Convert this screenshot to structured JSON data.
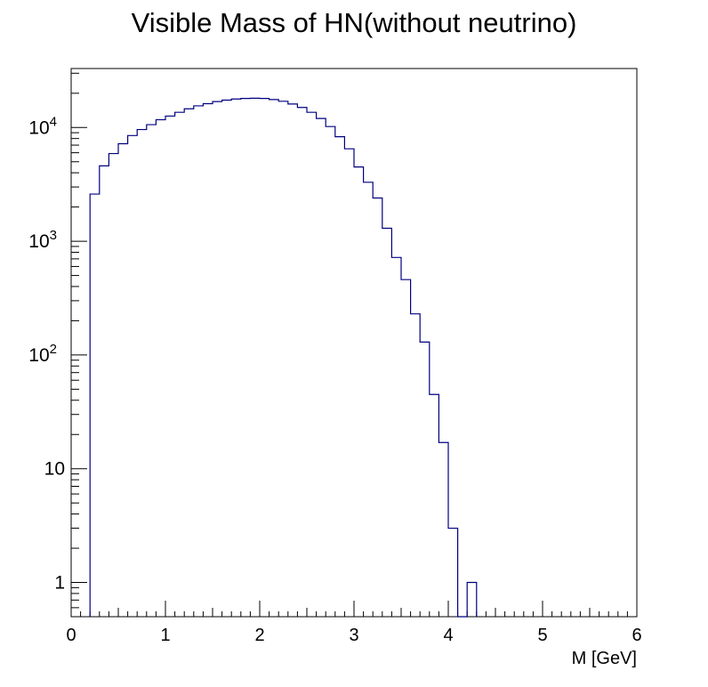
{
  "chart_data": {
    "type": "histogram",
    "title": "Visible Mass of HN(without neutrino)",
    "xlabel": "M [GeV]",
    "ylabel": "",
    "xlim": [
      0,
      6
    ],
    "ylim": [
      0.5,
      33000
    ],
    "yscale": "log",
    "x_tick_labels": [
      "0",
      "1",
      "2",
      "3",
      "4",
      "5",
      "6"
    ],
    "y_tick_labels": [
      "1",
      "10",
      "10^2",
      "10^3",
      "10^4"
    ],
    "grid": false,
    "legend": "none",
    "line_color": "#000080",
    "bin_width": 0.1,
    "bin_start": 0.2,
    "values": [
      2600,
      4600,
      5900,
      7200,
      8500,
      9600,
      10600,
      11700,
      12600,
      13600,
      14600,
      15500,
      16200,
      16900,
      17400,
      17800,
      18000,
      18100,
      18000,
      17600,
      17000,
      16100,
      15000,
      13600,
      12000,
      10200,
      8300,
      6500,
      4500,
      3300,
      2400,
      1300,
      720,
      460,
      230,
      130,
      45,
      17,
      3,
      0,
      1
    ]
  }
}
